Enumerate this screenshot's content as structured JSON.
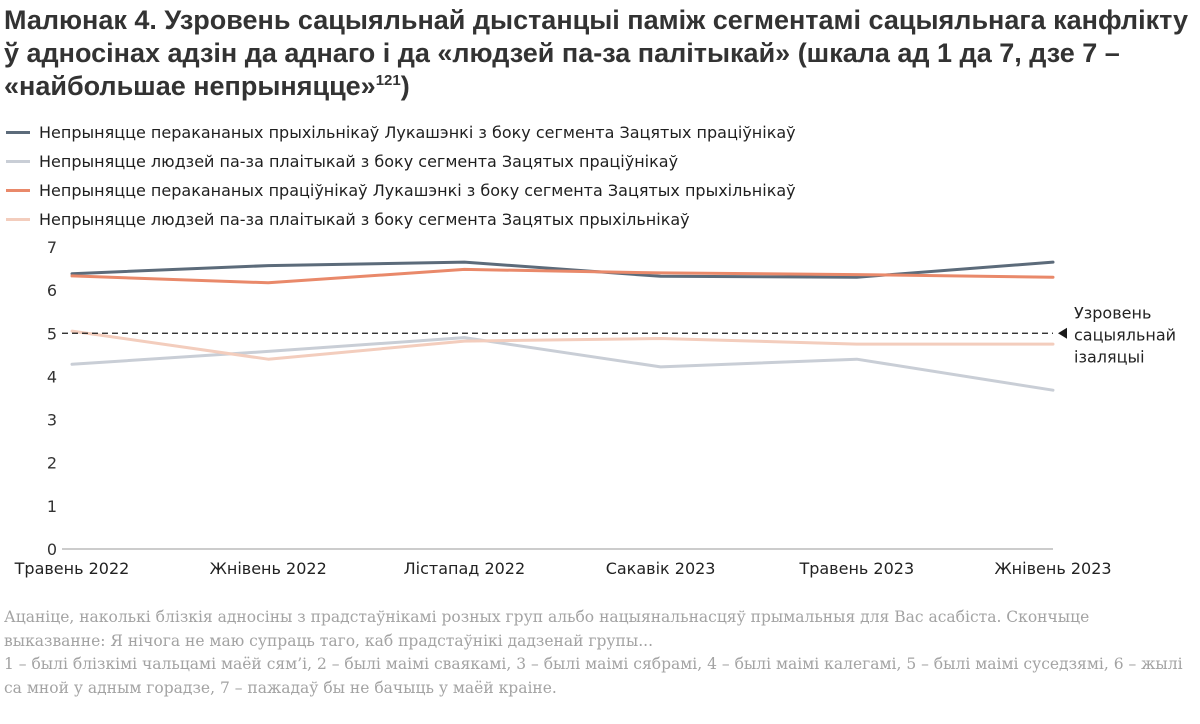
{
  "title": {
    "text": "Малюнак 4. Узровень сацыяльнай дыстанцыі паміж сегментамі сацыяльнага канфлікту ў адносінах адзін да аднаго і да «людзей па-за палітыкай» (шкала ад 1 да 7, дзе 7 – «найбольшае непрыняцце»",
    "footnote_mark": "121",
    "closing": ")"
  },
  "note": {
    "question": "Ацаніце, наколькі блізкія адносіны з прадстаўнікамі розных груп альбо нацыянальнасцяў прымальныя для Вас асабіста. Скончыце выказванне: Я нічога не маю супраць таго, каб прадстаўнікі дадзенай групы...",
    "scale": "1 – былі блізкімі чальцамі маёй сям’і, 2 – былі маімі сваякамі, 3 – былі маімі сябрамі, 4 – былі маімі калегамі, 5 – былі маімі суседзямі, 6 – жылі са мной у адным горадзе, 7 – пажадаў бы не бачыць у маёй краіне."
  },
  "chart_data": {
    "type": "line",
    "categories": [
      "Травень 2022",
      "Жнівень 2022",
      "Лістапад 2022",
      "Сакавік 2023",
      "Травень 2023",
      "Жнівень 2023"
    ],
    "ylim": [
      0,
      7
    ],
    "yticks": [
      0,
      1,
      2,
      3,
      4,
      5,
      6,
      7
    ],
    "grid": false,
    "legend_position": "top-left",
    "series": [
      {
        "name": "Непрыняцце перакананых прыхільнікаў Лукашэнкі з боку сегмента Зацятых праціўнікаў",
        "color": "#5c6b7a",
        "values": [
          6.38,
          6.57,
          6.65,
          6.32,
          6.3,
          6.65
        ]
      },
      {
        "name": "Непрыняцце людзей па-за плаітыкай з боку сегмента Зацятых праціўнікаў",
        "color": "#c9ced6",
        "values": [
          4.28,
          4.58,
          4.9,
          4.22,
          4.4,
          3.68
        ]
      },
      {
        "name": "Непрыняцце перакананых праціўнікаў Лукашэнкі з боку сегмента Зацятых прыхільнікаў",
        "color": "#e9896a",
        "values": [
          6.33,
          6.17,
          6.48,
          6.4,
          6.36,
          6.3
        ]
      },
      {
        "name": "Непрыняцце людзей па-за плаітыкай з боку сегмента Зацятых прыхільнікаў",
        "color": "#f3cdbd",
        "values": [
          5.05,
          4.4,
          4.82,
          4.88,
          4.75,
          4.75
        ]
      }
    ],
    "reference_line": {
      "value": 5,
      "label_lines": [
        "Узровень",
        "сацыяльнай",
        "ізаляцыі"
      ],
      "color": "#1a1a1a"
    }
  }
}
